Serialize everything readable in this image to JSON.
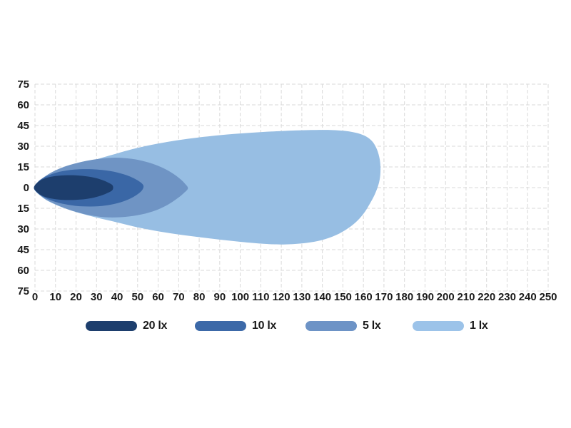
{
  "page": {
    "background_color": "#ffffff",
    "text_color": "#1a1a1a"
  },
  "chart_data": {
    "type": "area",
    "subtype": "isolux-beam-pattern",
    "title": "",
    "xlabel": "",
    "ylabel": "",
    "x_axis": {
      "min": 0,
      "max": 250,
      "step": 10,
      "tick_labels": [
        "0",
        "10",
        "20",
        "30",
        "40",
        "50",
        "60",
        "70",
        "80",
        "90",
        "100",
        "110",
        "120",
        "130",
        "140",
        "150",
        "160",
        "170",
        "180",
        "190",
        "200",
        "210",
        "220",
        "230",
        "240",
        "250"
      ]
    },
    "y_axis": {
      "min": -75,
      "max": 75,
      "step": 15,
      "tick_labels": [
        "75",
        "60",
        "45",
        "30",
        "15",
        "0",
        "15",
        "30",
        "45",
        "60",
        "75"
      ]
    },
    "grid": {
      "show": true,
      "color": "#d9d9d9",
      "dash": "5 3"
    },
    "series": [
      {
        "name": "1 lx",
        "lux": 1,
        "color": "#97bee3",
        "reach_m": 167,
        "max_half_width_m": 41,
        "outline": [
          [
            -0.5,
            0
          ],
          [
            5,
            7
          ],
          [
            15,
            13.5
          ],
          [
            30,
            20.5
          ],
          [
            40,
            24.8
          ],
          [
            50,
            28.8
          ],
          [
            62,
            32.5
          ],
          [
            75,
            35.5
          ],
          [
            90,
            38
          ],
          [
            105,
            39.8
          ],
          [
            120,
            41
          ],
          [
            133,
            41.7
          ],
          [
            145,
            41.7
          ],
          [
            154,
            40.5
          ],
          [
            160,
            38
          ],
          [
            164,
            34
          ],
          [
            166.5,
            28
          ],
          [
            168,
            20
          ],
          [
            168.3,
            11
          ],
          [
            167.5,
            3
          ],
          [
            165.5,
            -5
          ],
          [
            163,
            -12
          ],
          [
            160,
            -19
          ],
          [
            156,
            -25.5
          ],
          [
            151,
            -31
          ],
          [
            145,
            -35.5
          ],
          [
            138,
            -38.7
          ],
          [
            130,
            -40.5
          ],
          [
            121,
            -41.2
          ],
          [
            112,
            -40.8
          ],
          [
            100,
            -39.3
          ],
          [
            87,
            -37.2
          ],
          [
            74,
            -34.8
          ],
          [
            61,
            -31.9
          ],
          [
            50,
            -28.8
          ],
          [
            40,
            -25.2
          ],
          [
            30,
            -21.7
          ],
          [
            20,
            -17.7
          ],
          [
            11,
            -13
          ],
          [
            4,
            -7.5
          ]
        ]
      },
      {
        "name": "5 lx",
        "lux": 5,
        "color": "#6f94c4",
        "reach_m": 74.5,
        "max_half_width_m": 22,
        "outline": [
          [
            -0.5,
            0
          ],
          [
            3,
            6
          ],
          [
            8,
            11
          ],
          [
            15,
            15.5
          ],
          [
            23,
            18.8
          ],
          [
            31,
            20.8
          ],
          [
            39,
            21.7
          ],
          [
            47,
            20.9
          ],
          [
            54,
            18.8
          ],
          [
            60,
            15.8
          ],
          [
            65.5,
            11.8
          ],
          [
            70,
            7.2
          ],
          [
            73,
            3
          ],
          [
            74.5,
            -0.5
          ],
          [
            72.5,
            -4
          ],
          [
            69,
            -8.2
          ],
          [
            64.5,
            -12.6
          ],
          [
            59,
            -16.4
          ],
          [
            52,
            -19.4
          ],
          [
            44,
            -21.2
          ],
          [
            36,
            -21.6
          ],
          [
            28,
            -20.4
          ],
          [
            20,
            -17.6
          ],
          [
            13,
            -14
          ],
          [
            7,
            -10
          ],
          [
            2.5,
            -5.5
          ]
        ]
      },
      {
        "name": "10 lx",
        "lux": 10,
        "color": "#3a67a6",
        "reach_m": 53,
        "max_half_width_m": 13.5,
        "outline": [
          [
            -0.5,
            0
          ],
          [
            2,
            5
          ],
          [
            6,
            8.5
          ],
          [
            12,
            11.5
          ],
          [
            19,
            13.1
          ],
          [
            26,
            13.4
          ],
          [
            33,
            12.7
          ],
          [
            40,
            11
          ],
          [
            46,
            8.2
          ],
          [
            50.5,
            4.8
          ],
          [
            52.8,
            1.5
          ],
          [
            52,
            -2.2
          ],
          [
            49,
            -5.8
          ],
          [
            44.5,
            -9.2
          ],
          [
            38.5,
            -11.9
          ],
          [
            31,
            -13.5
          ],
          [
            23,
            -13.6
          ],
          [
            16,
            -12.4
          ],
          [
            9,
            -9.9
          ],
          [
            4,
            -6.7
          ],
          [
            1,
            -3.4
          ]
        ]
      },
      {
        "name": "20 lx",
        "lux": 20,
        "color": "#1d3e6d",
        "reach_m": 38.5,
        "max_half_width_m": 9,
        "outline": [
          [
            -0.5,
            0
          ],
          [
            1.5,
            4
          ],
          [
            5,
            6.8
          ],
          [
            10,
            8.4
          ],
          [
            16,
            9
          ],
          [
            22,
            8.7
          ],
          [
            27.5,
            7.6
          ],
          [
            32,
            5.9
          ],
          [
            35.5,
            3.8
          ],
          [
            37.8,
            1.6
          ],
          [
            37.8,
            -1.6
          ],
          [
            35.5,
            -3.8
          ],
          [
            32,
            -5.9
          ],
          [
            27.5,
            -7.6
          ],
          [
            22,
            -8.7
          ],
          [
            16,
            -9
          ],
          [
            10,
            -8.4
          ],
          [
            5,
            -6.8
          ],
          [
            1.5,
            -4
          ]
        ]
      }
    ],
    "legend": {
      "position": "bottom",
      "items": [
        {
          "label": "20 lx",
          "color": "#1d3e6d"
        },
        {
          "label": "10 lx",
          "color": "#3c69a8"
        },
        {
          "label": "5 lx",
          "color": "#6d93c6"
        },
        {
          "label": "1 lx",
          "color": "#9cc3e9"
        }
      ]
    }
  }
}
